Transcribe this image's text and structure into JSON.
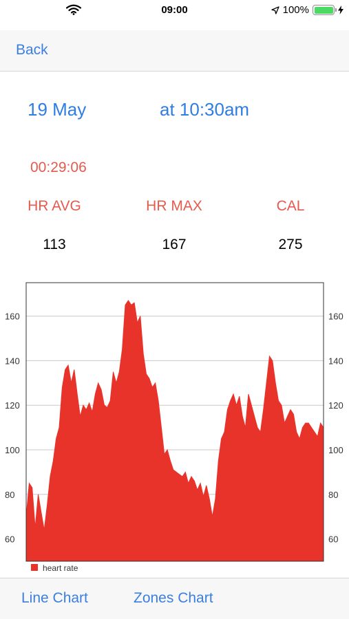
{
  "status_bar": {
    "time": "09:00",
    "battery": "100%",
    "icons": [
      "wifi-icon",
      "location-arrow-icon",
      "battery-icon",
      "charging-bolt-icon"
    ],
    "battery_color": "#4cd964"
  },
  "nav": {
    "back_label": "Back"
  },
  "workout": {
    "date": "19 May",
    "time": "at 10:30am",
    "duration": "00:29:06"
  },
  "stats": [
    {
      "label": "HR AVG",
      "value": "113"
    },
    {
      "label": "HR MAX",
      "value": "167"
    },
    {
      "label": "CAL",
      "value": "275"
    }
  ],
  "colors": {
    "accent": "#3a7fe0",
    "highlight": "#e45a4d",
    "series": "#e8332a"
  },
  "chart_data": {
    "type": "area",
    "legend": [
      "heart rate"
    ],
    "legend_position": "bottom-left",
    "grid": true,
    "ylim": [
      50,
      175
    ],
    "yticks": [
      60,
      80,
      100,
      120,
      140,
      160
    ],
    "series": [
      {
        "name": "heart rate",
        "values": [
          70,
          85,
          83,
          65,
          80,
          72,
          64,
          75,
          88,
          95,
          105,
          110,
          128,
          136,
          138,
          130,
          136,
          125,
          115,
          120,
          118,
          121,
          117,
          125,
          130,
          127,
          120,
          119,
          122,
          135,
          130,
          135,
          145,
          165,
          167,
          165,
          166,
          157,
          160,
          143,
          134,
          132,
          128,
          130,
          122,
          110,
          98,
          100,
          95,
          91,
          90,
          89,
          88,
          90,
          85,
          88,
          86,
          82,
          85,
          79,
          84,
          78,
          70,
          78,
          95,
          105,
          108,
          118,
          122,
          125,
          120,
          124,
          115,
          110,
          125,
          120,
          115,
          110,
          108,
          118,
          130,
          142,
          140,
          130,
          122,
          120,
          112,
          115,
          118,
          116,
          108,
          105,
          110,
          112,
          112,
          110,
          108,
          106,
          112,
          110
        ]
      }
    ]
  },
  "tabs": [
    {
      "label": "Line Chart"
    },
    {
      "label": "Zones Chart"
    }
  ]
}
